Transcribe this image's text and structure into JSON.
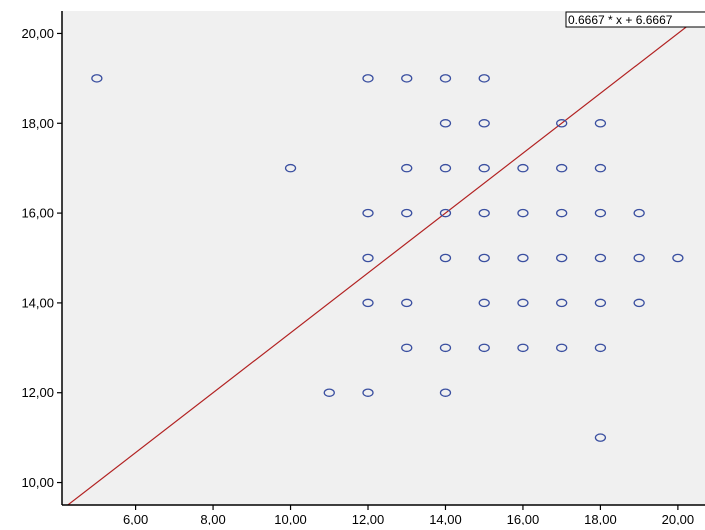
{
  "chart_data": {
    "type": "scatter",
    "title": "",
    "xlabel": "",
    "ylabel": "",
    "xlim": [
      4.1,
      20.7
    ],
    "ylim": [
      9.5,
      20.5
    ],
    "x_ticks": [
      6,
      8,
      10,
      12,
      14,
      16,
      18,
      20
    ],
    "y_ticks": [
      10,
      12,
      14,
      16,
      18,
      20
    ],
    "x_tick_labels": [
      "6,00",
      "8,00",
      "10,00",
      "12,00",
      "14,00",
      "16,00",
      "18,00",
      "20,00"
    ],
    "y_tick_labels": [
      "10,00",
      "12,00",
      "14,00",
      "16,00",
      "18,00",
      "20,00"
    ],
    "grid": false,
    "colors": {
      "plot_background": "#f0f0f0",
      "marker": "#3a4fa0",
      "fit_line": "#b22222",
      "axis": "#000000"
    },
    "points": [
      {
        "x": 5,
        "y": 19
      },
      {
        "x": 12,
        "y": 19
      },
      {
        "x": 13,
        "y": 19
      },
      {
        "x": 14,
        "y": 19
      },
      {
        "x": 15,
        "y": 19
      },
      {
        "x": 14,
        "y": 18
      },
      {
        "x": 15,
        "y": 18
      },
      {
        "x": 17,
        "y": 18
      },
      {
        "x": 18,
        "y": 18
      },
      {
        "x": 10,
        "y": 17
      },
      {
        "x": 13,
        "y": 17
      },
      {
        "x": 14,
        "y": 17
      },
      {
        "x": 15,
        "y": 17
      },
      {
        "x": 16,
        "y": 17
      },
      {
        "x": 17,
        "y": 17
      },
      {
        "x": 18,
        "y": 17
      },
      {
        "x": 12,
        "y": 16
      },
      {
        "x": 13,
        "y": 16
      },
      {
        "x": 14,
        "y": 16
      },
      {
        "x": 15,
        "y": 16
      },
      {
        "x": 16,
        "y": 16
      },
      {
        "x": 17,
        "y": 16
      },
      {
        "x": 18,
        "y": 16
      },
      {
        "x": 19,
        "y": 16
      },
      {
        "x": 12,
        "y": 15
      },
      {
        "x": 14,
        "y": 15
      },
      {
        "x": 15,
        "y": 15
      },
      {
        "x": 16,
        "y": 15
      },
      {
        "x": 17,
        "y": 15
      },
      {
        "x": 18,
        "y": 15
      },
      {
        "x": 19,
        "y": 15
      },
      {
        "x": 20,
        "y": 15
      },
      {
        "x": 12,
        "y": 14
      },
      {
        "x": 13,
        "y": 14
      },
      {
        "x": 15,
        "y": 14
      },
      {
        "x": 16,
        "y": 14
      },
      {
        "x": 17,
        "y": 14
      },
      {
        "x": 18,
        "y": 14
      },
      {
        "x": 19,
        "y": 14
      },
      {
        "x": 13,
        "y": 13
      },
      {
        "x": 14,
        "y": 13
      },
      {
        "x": 15,
        "y": 13
      },
      {
        "x": 16,
        "y": 13
      },
      {
        "x": 17,
        "y": 13
      },
      {
        "x": 18,
        "y": 13
      },
      {
        "x": 11,
        "y": 12
      },
      {
        "x": 12,
        "y": 12
      },
      {
        "x": 14,
        "y": 12
      },
      {
        "x": 18,
        "y": 11
      }
    ],
    "fit_line": {
      "slope": 0.6667,
      "intercept": 6.6667,
      "equation_label": "0.6667 * x + 6.6667"
    }
  }
}
